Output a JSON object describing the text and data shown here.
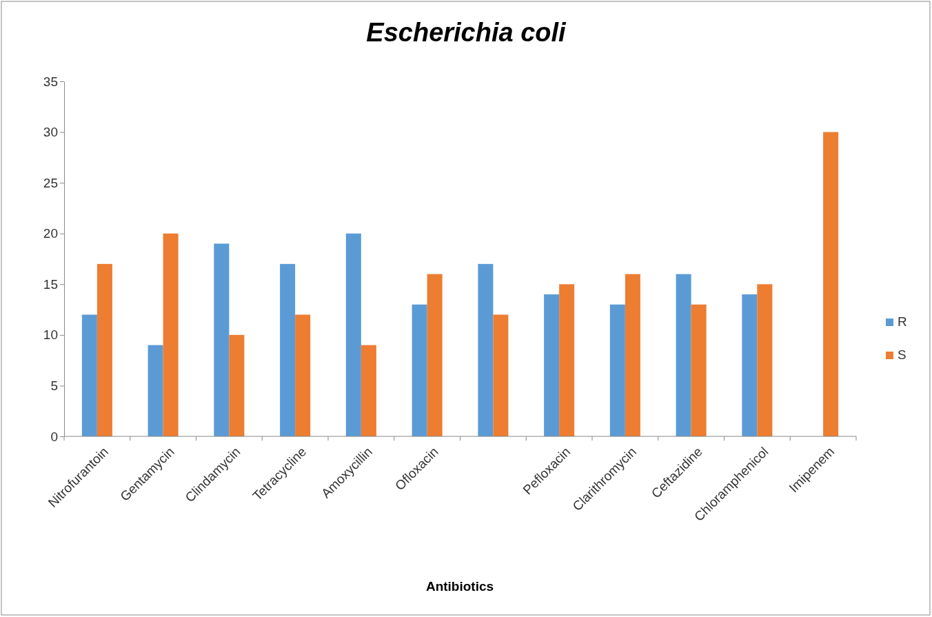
{
  "chart_data": {
    "type": "bar",
    "title": "Escherichia coli",
    "xlabel": "Antibiotics",
    "categories": [
      "Nitrofurantoin",
      "Gentamycin",
      "Clindamycin",
      "Tetracycline",
      "Amoxycillin",
      "Ofloxacin",
      null,
      "Pefloxacin",
      "Clarithromycin",
      "Ceftazidine",
      "Chloramphenicol",
      "Imipenem"
    ],
    "series": [
      {
        "name": "R",
        "color": "#5b9bd5",
        "values": [
          12,
          9,
          19,
          17,
          20,
          13,
          17,
          14,
          13,
          16,
          14,
          0
        ]
      },
      {
        "name": "S",
        "color": "#ed7d31",
        "values": [
          17,
          20,
          10,
          12,
          9,
          16,
          12,
          15,
          16,
          13,
          15,
          30
        ]
      }
    ],
    "ylim": [
      0,
      35
    ],
    "yticks": [
      0,
      5,
      10,
      15,
      20,
      25,
      30,
      35
    ],
    "grid": false,
    "legend": "right"
  }
}
